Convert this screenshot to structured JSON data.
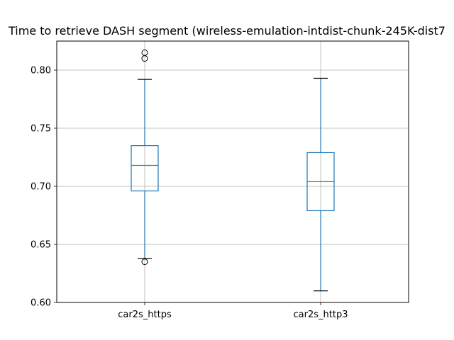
{
  "chart_data": {
    "type": "box",
    "title": "Time to retrieve DASH segment (wireless-emulation-intdist-chunk-245K-dist7",
    "xlabel": "",
    "ylabel": "",
    "ylim": [
      0.6,
      0.825
    ],
    "yticks": [
      0.6,
      0.65,
      0.7,
      0.75,
      0.8
    ],
    "ytick_labels": [
      "0.60",
      "0.65",
      "0.70",
      "0.75",
      "0.80"
    ],
    "grid": true,
    "categories": [
      "car2s_https",
      "car2s_http3"
    ],
    "series": [
      {
        "category": "car2s_https",
        "whisker_low": 0.638,
        "q1": 0.696,
        "median": 0.718,
        "q3": 0.735,
        "whisker_high": 0.792,
        "outliers": [
          0.635,
          0.81,
          0.815
        ]
      },
      {
        "category": "car2s_http3",
        "whisker_low": 0.61,
        "q1": 0.679,
        "median": 0.704,
        "q3": 0.729,
        "whisker_high": 0.793,
        "outliers": []
      }
    ],
    "colors": {
      "box": "#1f77b4",
      "median": "#2ca02c",
      "whisker_cap": "#000000",
      "grid": "#b0b0b0"
    }
  }
}
